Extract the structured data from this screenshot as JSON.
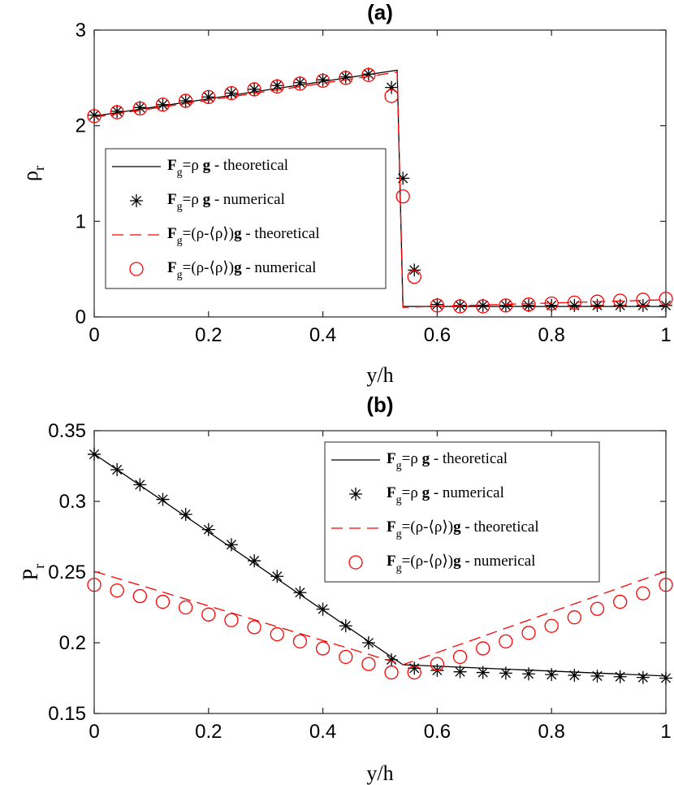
{
  "chart_data": [
    {
      "panel": "a",
      "type": "line",
      "title": "(a)",
      "xlabel": "y/h",
      "ylabel": "ρr",
      "xlim": [
        0,
        1
      ],
      "ylim": [
        0,
        3
      ],
      "xticks": [
        "0",
        "0.2",
        "0.4",
        "0.6",
        "0.8",
        "1"
      ],
      "yticks": [
        "0",
        "1",
        "2",
        "3"
      ],
      "legend_position": "center-left",
      "series": [
        {
          "name": "Fg=ρ g - theoretical",
          "style": "solid",
          "color": "#000000",
          "x": [
            0,
            0.53,
            0.54,
            1
          ],
          "y": [
            2.1,
            2.58,
            0.11,
            0.11
          ]
        },
        {
          "name": "Fg=ρ g - numerical",
          "style": "star",
          "color": "#000000",
          "x": [
            0,
            0.04,
            0.08,
            0.12,
            0.16,
            0.2,
            0.24,
            0.28,
            0.32,
            0.36,
            0.4,
            0.44,
            0.48,
            0.52,
            0.54,
            0.56,
            0.6,
            0.64,
            0.68,
            0.72,
            0.76,
            0.8,
            0.84,
            0.88,
            0.92,
            0.96,
            1
          ],
          "y": [
            2.11,
            2.15,
            2.19,
            2.22,
            2.26,
            2.3,
            2.34,
            2.38,
            2.42,
            2.45,
            2.48,
            2.51,
            2.54,
            2.4,
            1.45,
            0.49,
            0.13,
            0.12,
            0.12,
            0.12,
            0.12,
            0.12,
            0.12,
            0.12,
            0.12,
            0.12,
            0.12
          ]
        },
        {
          "name": "Fg=(ρ-⟨ρ⟩)g - theoretical",
          "style": "dashed",
          "color": "#ff0000",
          "x": [
            0,
            0.53,
            0.54,
            1
          ],
          "y": [
            2.09,
            2.56,
            0.1,
            0.18
          ]
        },
        {
          "name": "Fg=(ρ-⟨ρ⟩)g - numerical",
          "style": "circle",
          "color": "#ff0000",
          "x": [
            0,
            0.04,
            0.08,
            0.12,
            0.16,
            0.2,
            0.24,
            0.28,
            0.32,
            0.36,
            0.4,
            0.44,
            0.48,
            0.52,
            0.54,
            0.56,
            0.6,
            0.64,
            0.68,
            0.72,
            0.76,
            0.8,
            0.84,
            0.88,
            0.92,
            0.96,
            1
          ],
          "y": [
            2.1,
            2.14,
            2.18,
            2.22,
            2.26,
            2.3,
            2.34,
            2.38,
            2.41,
            2.44,
            2.47,
            2.5,
            2.53,
            2.31,
            1.26,
            0.42,
            0.12,
            0.11,
            0.11,
            0.12,
            0.13,
            0.14,
            0.15,
            0.16,
            0.17,
            0.18,
            0.19
          ]
        }
      ]
    },
    {
      "panel": "b",
      "type": "line",
      "title": "(b)",
      "xlabel": "y/h",
      "ylabel": "Pr",
      "xlim": [
        0,
        1
      ],
      "ylim": [
        0.15,
        0.35
      ],
      "xticks": [
        "0",
        "0.2",
        "0.4",
        "0.6",
        "0.8",
        "1"
      ],
      "yticks": [
        "0.15",
        "0.2",
        "0.25",
        "0.3",
        "0.35"
      ],
      "legend_position": "top-right",
      "series": [
        {
          "name": "Fg=ρ g - theoretical",
          "style": "solid",
          "color": "#000000",
          "x": [
            0,
            0.54,
            1
          ],
          "y": [
            0.3335,
            0.1845,
            0.1765
          ]
        },
        {
          "name": "Fg=ρ g - numerical",
          "style": "star",
          "color": "#000000",
          "x": [
            0,
            0.04,
            0.08,
            0.12,
            0.16,
            0.2,
            0.24,
            0.28,
            0.32,
            0.36,
            0.4,
            0.44,
            0.48,
            0.52,
            0.56,
            0.6,
            0.64,
            0.68,
            0.72,
            0.76,
            0.8,
            0.84,
            0.88,
            0.92,
            0.96,
            1
          ],
          "y": [
            0.3333,
            0.3224,
            0.3118,
            0.3014,
            0.2908,
            0.2801,
            0.2694,
            0.258,
            0.247,
            0.2355,
            0.2238,
            0.212,
            0.2,
            0.188,
            0.182,
            0.1805,
            0.1795,
            0.179,
            0.1785,
            0.178,
            0.1775,
            0.177,
            0.1765,
            0.176,
            0.1755,
            0.175
          ]
        },
        {
          "name": "Fg=(ρ-⟨ρ⟩)g - theoretical",
          "style": "dashed",
          "color": "#ff0000",
          "x": [
            0,
            0.54,
            1
          ],
          "y": [
            0.2505,
            0.1845,
            0.2505
          ]
        },
        {
          "name": "Fg=(ρ-⟨ρ⟩)g - numerical",
          "style": "circle",
          "color": "#ff0000",
          "x": [
            0,
            0.04,
            0.08,
            0.12,
            0.16,
            0.2,
            0.24,
            0.28,
            0.32,
            0.36,
            0.4,
            0.44,
            0.48,
            0.52,
            0.56,
            0.6,
            0.64,
            0.68,
            0.72,
            0.76,
            0.8,
            0.84,
            0.88,
            0.92,
            0.96,
            1
          ],
          "y": [
            0.241,
            0.237,
            0.233,
            0.229,
            0.225,
            0.22,
            0.216,
            0.211,
            0.206,
            0.201,
            0.196,
            0.19,
            0.185,
            0.179,
            0.179,
            0.185,
            0.19,
            0.196,
            0.201,
            0.207,
            0.212,
            0.218,
            0.224,
            0.229,
            0.235,
            0.241
          ]
        }
      ]
    }
  ]
}
